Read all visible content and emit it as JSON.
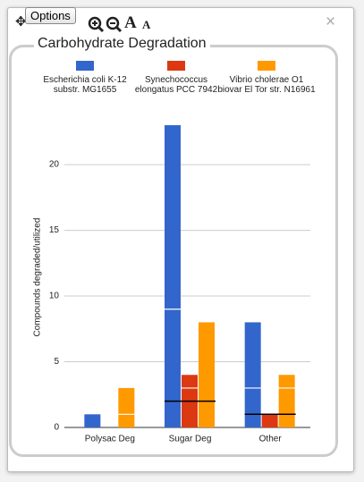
{
  "toolbar": {
    "button": "Options",
    "font_larger": "A",
    "font_smaller": "A",
    "close": "×"
  },
  "panel_title": "Carbohydrate Degradation",
  "chart_data": {
    "type": "bar",
    "y_label": "Compounds degraded/utilized",
    "categories": [
      "Polysac Deg",
      "Sugar Deg",
      "Other"
    ],
    "series": [
      {
        "name": "Escherichia coli K-12 substr. MG1655",
        "color": "#3366cc",
        "values": [
          1,
          23,
          8
        ],
        "dividers": [
          null,
          9,
          3
        ]
      },
      {
        "name": "Synechococcus elongatus PCC 7942",
        "color": "#dc3912",
        "values": [
          0,
          4,
          1
        ],
        "dividers": [
          null,
          3,
          null
        ]
      },
      {
        "name": "Vibrio cholerae O1 biovar El Tor str. N16961",
        "color": "#ff9900",
        "values": [
          3,
          8,
          4
        ],
        "dividers": [
          1,
          null,
          3
        ]
      }
    ],
    "shared": [
      null,
      2,
      1
    ],
    "ylim": [
      0,
      23
    ],
    "yticks": [
      0,
      5,
      10,
      15,
      20
    ],
    "grid": true
  }
}
